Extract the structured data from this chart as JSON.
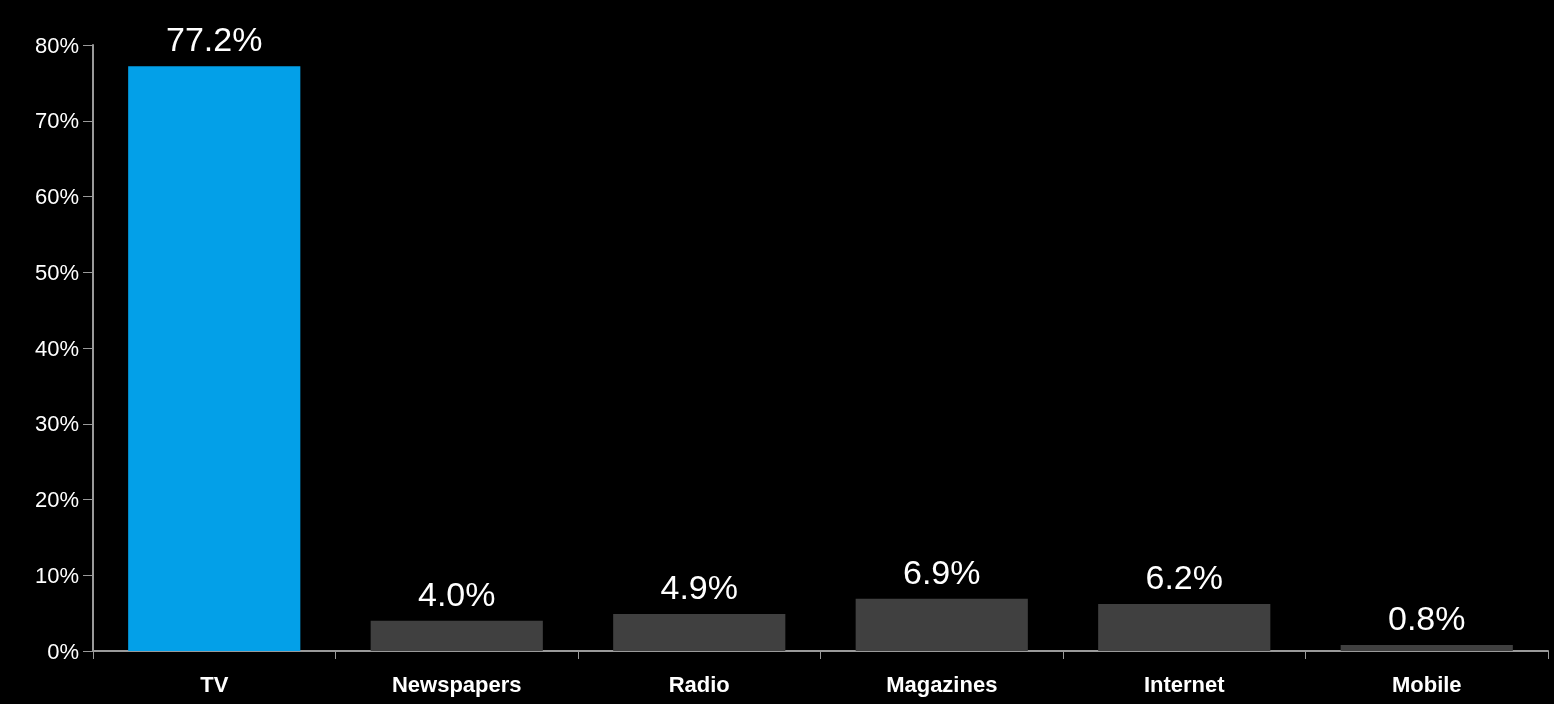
{
  "chart_data": {
    "type": "bar",
    "categories": [
      "TV",
      "Newspapers",
      "Radio",
      "Magazines",
      "Internet",
      "Mobile"
    ],
    "values": [
      77.2,
      4.0,
      4.9,
      6.9,
      6.2,
      0.8
    ],
    "colors": [
      "#03a0e8",
      "#404040",
      "#404040",
      "#404040",
      "#404040",
      "#404040"
    ],
    "value_labels": [
      "77.2%",
      "4.0%",
      "4.9%",
      "6.9%",
      "6.2%",
      "0.8%"
    ],
    "ylim": [
      0,
      80
    ],
    "yticks": [
      {
        "value": 0,
        "label": "0%"
      },
      {
        "value": 10,
        "label": "10%"
      },
      {
        "value": 20,
        "label": "20%"
      },
      {
        "value": 30,
        "label": "30%"
      },
      {
        "value": 40,
        "label": "40%"
      },
      {
        "value": 50,
        "label": "50%"
      },
      {
        "value": 60,
        "label": "60%"
      },
      {
        "value": 70,
        "label": "70%"
      },
      {
        "value": 80,
        "label": "80%"
      }
    ],
    "grid": false
  }
}
